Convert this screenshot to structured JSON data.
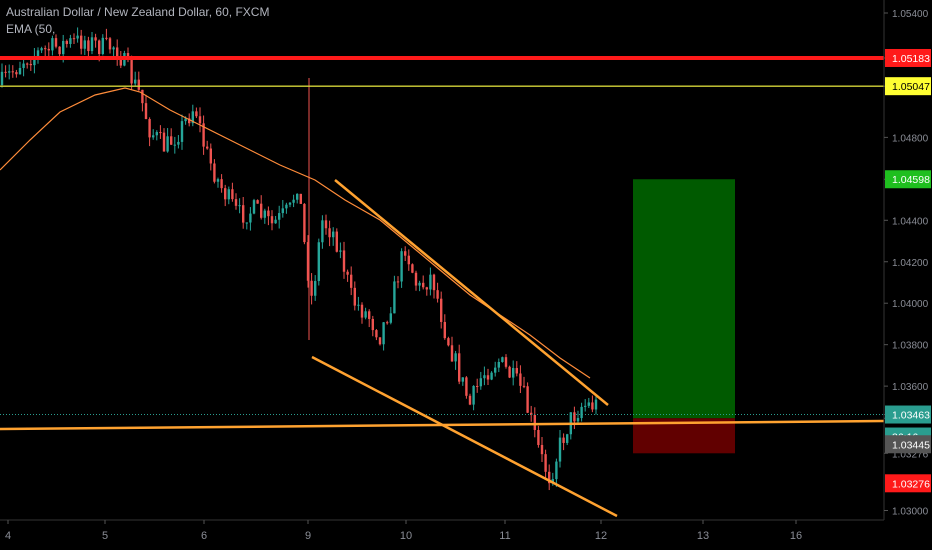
{
  "legend": {
    "symbol_line": "Australian Dollar / New Zealand Dollar, 60, FXCM",
    "indicator_line": "EMA (50,"
  },
  "chart_data": {
    "type": "candlestick",
    "title": "Australian Dollar / New Zealand Dollar, 60, FXCM",
    "x_ticks": [
      "4",
      "5",
      "6",
      "9",
      "10",
      "11",
      "12",
      "13",
      "16"
    ],
    "y_ticks": [
      "1.05400",
      "1.05183",
      "1.05047",
      "1.04800",
      "1.04598",
      "1.04400",
      "1.04200",
      "1.04000",
      "1.03800",
      "1.03600",
      "1.03463",
      "1.03445",
      "1.03276",
      "1.03000"
    ],
    "ylim": [
      1.029,
      1.0545
    ],
    "price_labels": [
      {
        "name": "resistance",
        "value": "1.05183",
        "color": "#ff1a1a"
      },
      {
        "name": "resistance-2",
        "value": "1.05047",
        "color": "#ffff33"
      },
      {
        "name": "take-profit",
        "value": "1.04598",
        "color": "#1fbf1f"
      },
      {
        "name": "last-price",
        "value": "1.03463",
        "color": "#2a9d8f"
      },
      {
        "name": "countdown",
        "value": "36:16",
        "color": "#2a9d8f"
      },
      {
        "name": "entry",
        "value": "1.03445",
        "color": "#555555"
      },
      {
        "name": "stop-loss",
        "value": "1.03276",
        "color": "#ff1a1a"
      }
    ],
    "horizontal_lines": [
      {
        "value": 1.05183,
        "color": "#ff1a1a"
      },
      {
        "value": 1.05047,
        "color": "#d4d43a"
      }
    ],
    "long_position": {
      "target": 1.04598,
      "entry": 1.03445,
      "stop": 1.03276
    },
    "colors": {
      "up": "#26a69a",
      "down": "#ef5350",
      "ema": "#ff8c3a",
      "trendline": "#ffa230",
      "profit": "#006400",
      "loss": "#6b0000"
    }
  }
}
